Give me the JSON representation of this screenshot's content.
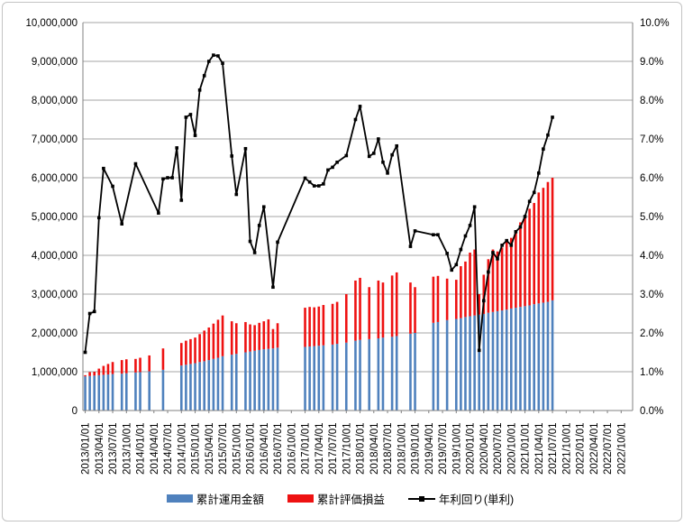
{
  "chart_data": {
    "type": "bar",
    "subtype": "stacked-bar-with-line-combo",
    "title": "",
    "grid": "horizontal",
    "legend_position": "bottom",
    "colors": {
      "invested_bar": "#4f81bd",
      "profit_bar": "#ee1111",
      "yield_line": "#000000",
      "gridline": "#a6a6a6",
      "axis": "#808080"
    },
    "y_left": {
      "min": 0,
      "max": 10000000,
      "tick_labels": [
        "0",
        "1,000,000",
        "2,000,000",
        "3,000,000",
        "4,000,000",
        "5,000,000",
        "6,000,000",
        "7,000,000",
        "8,000,000",
        "9,000,000",
        "10,000,000"
      ]
    },
    "y_right": {
      "min": 0,
      "max": 10,
      "tick_labels": [
        "0.0%",
        "1.0%",
        "2.0%",
        "3.0%",
        "4.0%",
        "5.0%",
        "6.0%",
        "7.0%",
        "8.0%",
        "9.0%",
        "10.0%"
      ]
    },
    "x_slot_count": 120,
    "x_start": "2013/01",
    "x_tick_labels": [
      "2013/01/01",
      "2013/04/01",
      "2013/07/01",
      "2013/10/01",
      "2014/01/01",
      "2014/04/01",
      "2014/07/01",
      "2014/10/01",
      "2015/01/01",
      "2015/04/01",
      "2015/07/01",
      "2015/10/01",
      "2016/01/01",
      "2016/04/01",
      "2016/07/01",
      "2016/10/01",
      "2017/01/01",
      "2017/04/01",
      "2017/07/01",
      "2017/10/01",
      "2018/01/01",
      "2018/04/01",
      "2018/07/01",
      "2018/10/01",
      "2019/01/01",
      "2019/04/01",
      "2019/07/01",
      "2019/10/01",
      "2020/01/01",
      "2020/04/01",
      "2020/07/01",
      "2020/10/01",
      "2021/01/01",
      "2021/04/01",
      "2021/07/01",
      "2021/10/01",
      "2022/01/01",
      "2022/04/01",
      "2022/07/01",
      "2022/10/01"
    ],
    "series": [
      {
        "name": "累計運用金額",
        "type": "bar",
        "stacked": true,
        "color": "#4f81bd",
        "axis": "left"
      },
      {
        "name": "累計評価損益",
        "type": "bar",
        "stacked": true,
        "color": "#ee1111",
        "axis": "left"
      },
      {
        "name": "年利回り(単利)",
        "type": "line",
        "marker": "square",
        "color": "#000000",
        "axis": "right"
      }
    ],
    "bars_note": "entries = [monthIndexFrom201301, 累計運用金額(yen), 累計評価損益(yen)] ; bar total = sum",
    "bars": [
      [
        0,
        880000,
        30000
      ],
      [
        1,
        890000,
        100000
      ],
      [
        2,
        900000,
        100000
      ],
      [
        3,
        910000,
        170000
      ],
      [
        4,
        920000,
        230000
      ],
      [
        5,
        930000,
        270000
      ],
      [
        6,
        940000,
        310000
      ],
      [
        8,
        950000,
        350000
      ],
      [
        9,
        960000,
        360000
      ],
      [
        11,
        980000,
        350000
      ],
      [
        12,
        990000,
        370000
      ],
      [
        14,
        1010000,
        410000
      ],
      [
        17,
        1050000,
        550000
      ],
      [
        21,
        1160000,
        580000
      ],
      [
        22,
        1180000,
        620000
      ],
      [
        23,
        1200000,
        640000
      ],
      [
        24,
        1220000,
        660000
      ],
      [
        25,
        1250000,
        720000
      ],
      [
        26,
        1270000,
        790000
      ],
      [
        27,
        1300000,
        840000
      ],
      [
        28,
        1330000,
        910000
      ],
      [
        29,
        1360000,
        980000
      ],
      [
        30,
        1400000,
        1050000
      ],
      [
        32,
        1440000,
        860000
      ],
      [
        33,
        1460000,
        790000
      ],
      [
        35,
        1500000,
        780000
      ],
      [
        36,
        1520000,
        700000
      ],
      [
        37,
        1540000,
        660000
      ],
      [
        38,
        1560000,
        700000
      ],
      [
        39,
        1580000,
        720000
      ],
      [
        40,
        1590000,
        760000
      ],
      [
        41,
        1600000,
        500000
      ],
      [
        42,
        1620000,
        630000
      ],
      [
        48,
        1640000,
        1010000
      ],
      [
        49,
        1650000,
        1020000
      ],
      [
        50,
        1660000,
        1000000
      ],
      [
        51,
        1670000,
        1010000
      ],
      [
        52,
        1680000,
        1040000
      ],
      [
        54,
        1700000,
        1050000
      ],
      [
        55,
        1720000,
        1080000
      ],
      [
        57,
        1750000,
        1250000
      ],
      [
        59,
        1800000,
        1550000
      ],
      [
        60,
        1820000,
        1600000
      ],
      [
        62,
        1840000,
        1340000
      ],
      [
        64,
        1860000,
        1490000
      ],
      [
        65,
        1880000,
        1420000
      ],
      [
        67,
        1900000,
        1580000
      ],
      [
        68,
        1920000,
        1640000
      ],
      [
        71,
        1980000,
        1320000
      ],
      [
        72,
        2000000,
        1180000
      ],
      [
        76,
        2260000,
        1190000
      ],
      [
        77,
        2280000,
        1190000
      ],
      [
        79,
        2330000,
        1070000
      ],
      [
        81,
        2360000,
        1010000
      ],
      [
        82,
        2380000,
        1340000
      ],
      [
        83,
        2410000,
        1430000
      ],
      [
        84,
        2430000,
        1640000
      ],
      [
        85,
        2450000,
        1700000
      ],
      [
        86,
        2470000,
        530000
      ],
      [
        87,
        2490000,
        1010000
      ],
      [
        88,
        2520000,
        1380000
      ],
      [
        89,
        2540000,
        1610000
      ],
      [
        90,
        2560000,
        1540000
      ],
      [
        91,
        2580000,
        1620000
      ],
      [
        92,
        2600000,
        1750000
      ],
      [
        93,
        2630000,
        1820000
      ],
      [
        94,
        2650000,
        1950000
      ],
      [
        95,
        2670000,
        2180000
      ],
      [
        96,
        2690000,
        2310000
      ],
      [
        97,
        2710000,
        2490000
      ],
      [
        98,
        2740000,
        2610000
      ],
      [
        99,
        2760000,
        2860000
      ],
      [
        100,
        2780000,
        2960000
      ],
      [
        101,
        2800000,
        3090000
      ],
      [
        102,
        2840000,
        3160000
      ]
    ],
    "line_note": "entries = [monthIndexFrom201301, 年利回り(単利) %]",
    "line": [
      [
        0,
        1.5
      ],
      [
        1,
        2.5
      ],
      [
        2,
        2.55
      ],
      [
        3,
        4.97
      ],
      [
        4,
        6.24
      ],
      [
        6,
        5.78
      ],
      [
        8,
        4.81
      ],
      [
        11,
        6.36
      ],
      [
        16,
        5.09
      ],
      [
        17,
        5.97
      ],
      [
        18,
        6.0
      ],
      [
        19,
        6.0
      ],
      [
        20,
        6.77
      ],
      [
        21,
        5.42
      ],
      [
        22,
        7.56
      ],
      [
        23,
        7.63
      ],
      [
        24,
        7.09
      ],
      [
        25,
        8.26
      ],
      [
        26,
        8.63
      ],
      [
        27,
        9.0
      ],
      [
        28,
        9.16
      ],
      [
        29,
        9.14
      ],
      [
        30,
        8.95
      ],
      [
        32,
        6.56
      ],
      [
        33,
        5.57
      ],
      [
        35,
        6.75
      ],
      [
        36,
        4.36
      ],
      [
        37,
        4.07
      ],
      [
        38,
        4.77
      ],
      [
        39,
        5.25
      ],
      [
        41,
        3.18
      ],
      [
        42,
        4.34
      ],
      [
        48,
        5.99
      ],
      [
        49,
        5.89
      ],
      [
        50,
        5.79
      ],
      [
        51,
        5.79
      ],
      [
        52,
        5.84
      ],
      [
        53,
        6.2
      ],
      [
        54,
        6.27
      ],
      [
        55,
        6.4
      ],
      [
        57,
        6.57
      ],
      [
        59,
        7.5
      ],
      [
        60,
        7.84
      ],
      [
        62,
        6.55
      ],
      [
        63,
        6.63
      ],
      [
        64,
        7.0
      ],
      [
        65,
        6.4
      ],
      [
        66,
        6.12
      ],
      [
        67,
        6.59
      ],
      [
        68,
        6.82
      ],
      [
        71,
        4.23
      ],
      [
        72,
        4.63
      ],
      [
        76,
        4.53
      ],
      [
        77,
        4.53
      ],
      [
        79,
        4.05
      ],
      [
        80,
        3.62
      ],
      [
        81,
        3.76
      ],
      [
        82,
        4.15
      ],
      [
        83,
        4.5
      ],
      [
        84,
        4.77
      ],
      [
        85,
        5.25
      ],
      [
        86,
        1.55
      ],
      [
        87,
        2.83
      ],
      [
        88,
        3.57
      ],
      [
        89,
        4.07
      ],
      [
        90,
        3.91
      ],
      [
        91,
        4.26
      ],
      [
        92,
        4.38
      ],
      [
        93,
        4.26
      ],
      [
        94,
        4.61
      ],
      [
        95,
        4.73
      ],
      [
        96,
        5.0
      ],
      [
        97,
        5.39
      ],
      [
        98,
        5.62
      ],
      [
        99,
        6.12
      ],
      [
        100,
        6.74
      ],
      [
        101,
        7.1
      ],
      [
        102,
        7.56
      ]
    ]
  }
}
